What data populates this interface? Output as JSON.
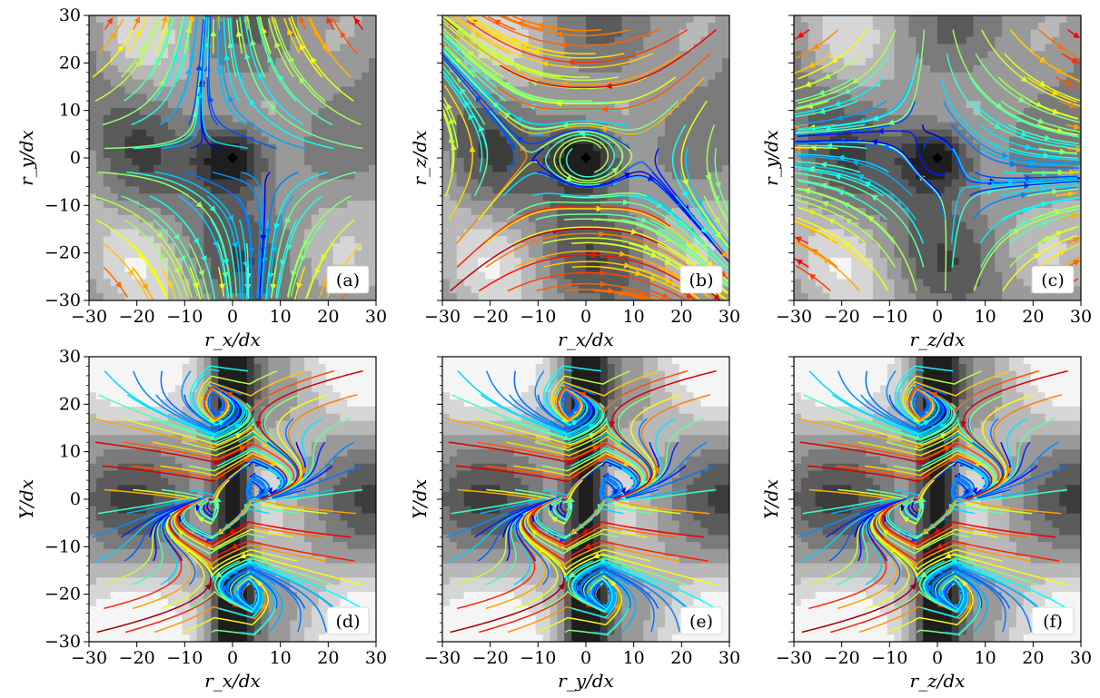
{
  "chart_data": [
    {
      "type": "streamplot",
      "panel_label": "(a)",
      "xlabel": "r_x/dx",
      "ylabel": "r_y/dx",
      "xlim": [
        -30,
        30
      ],
      "ylim": [
        -30,
        30
      ],
      "xticks": [
        -30,
        -20,
        -10,
        0,
        10,
        20,
        30
      ],
      "yticks": [
        -30,
        -20,
        -10,
        0,
        10,
        20,
        30
      ],
      "show_yticklabels": true,
      "background": "filled-contour-grayscale",
      "field": "saddle-x",
      "center_marker": [
        0,
        0
      ]
    },
    {
      "type": "streamplot",
      "panel_label": "(b)",
      "xlabel": "r_x/dx",
      "ylabel": "r_z/dx",
      "xlim": [
        -30,
        30
      ],
      "ylim": [
        -30,
        30
      ],
      "xticks": [
        -30,
        -20,
        -10,
        0,
        10,
        20,
        30
      ],
      "yticks": [
        -30,
        -20,
        -10,
        0,
        10,
        20,
        30
      ],
      "show_yticklabels": false,
      "background": "filled-contour-grayscale",
      "field": "diagonal-swirl",
      "center_marker": [
        0,
        0
      ]
    },
    {
      "type": "streamplot",
      "panel_label": "(c)",
      "xlabel": "r_z/dx",
      "ylabel": "r_y/dx",
      "xlim": [
        -30,
        30
      ],
      "ylim": [
        -30,
        30
      ],
      "xticks": [
        -30,
        -20,
        -10,
        0,
        10,
        20,
        30
      ],
      "yticks": [
        -30,
        -20,
        -10,
        0,
        10,
        20,
        30
      ],
      "show_yticklabels": false,
      "background": "filled-contour-grayscale",
      "field": "saddle-y",
      "center_marker": [
        0,
        0
      ]
    },
    {
      "type": "streamplot",
      "panel_label": "(d)",
      "xlabel": "r_x/dx",
      "ylabel": "Y/dx",
      "xlim": [
        -30,
        30
      ],
      "ylim": [
        -30,
        30
      ],
      "xticks": [
        -30,
        -20,
        -10,
        0,
        10,
        20,
        30
      ],
      "yticks": [
        -30,
        -20,
        -10,
        0,
        10,
        20,
        30
      ],
      "show_yticklabels": true,
      "background": "filled-contour-grayscale-dark",
      "field": "converge-center",
      "center_marker": null
    },
    {
      "type": "streamplot",
      "panel_label": "(e)",
      "xlabel": "r_y/dx",
      "ylabel": "Y/dx",
      "xlim": [
        -30,
        30
      ],
      "ylim": [
        -30,
        30
      ],
      "xticks": [
        -30,
        -20,
        -10,
        0,
        10,
        20,
        30
      ],
      "yticks": [
        -30,
        -20,
        -10,
        0,
        10,
        20,
        30
      ],
      "show_yticklabels": false,
      "background": "filled-contour-grayscale-dark",
      "field": "converge-center",
      "center_marker": null
    },
    {
      "type": "streamplot",
      "panel_label": "(f)",
      "xlabel": "r_z/dx",
      "ylabel": "Y/dx",
      "xlim": [
        -30,
        30
      ],
      "ylim": [
        -30,
        30
      ],
      "xticks": [
        -30,
        -20,
        -10,
        0,
        10,
        20,
        30
      ],
      "yticks": [
        -30,
        -20,
        -10,
        0,
        10,
        20,
        30
      ],
      "show_yticklabels": false,
      "background": "filled-contour-grayscale-dark",
      "field": "converge-center",
      "center_marker": null
    }
  ],
  "colormap": [
    "#00007f",
    "#0000ff",
    "#007fff",
    "#00ffff",
    "#7fff7f",
    "#ffff00",
    "#ff7f00",
    "#ff0000",
    "#7f0000"
  ]
}
